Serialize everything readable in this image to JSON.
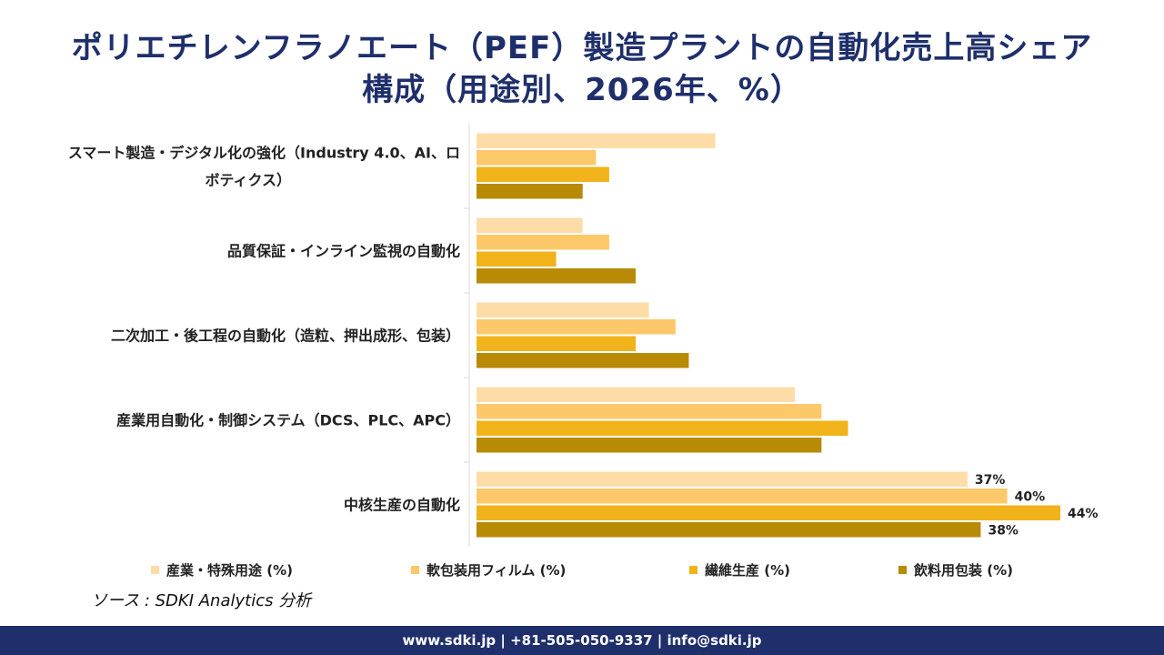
{
  "chart_data": {
    "type": "bar",
    "orientation": "horizontal",
    "title_lines": [
      "ポリエチレンフラノエート（PEF）製造プラントの自動化売上高シェア",
      "構成（用途別、2026年、%）"
    ],
    "categories": [
      "スマート製造・デジタル化の強化（Industry 4.0、AI、ロボティクス）",
      "品質保証・インライン監視の自動化",
      "二次加工・後工程の自動化（造粒、押出成形、包装）",
      "産業用自動化・制御システム（DCS、PLC、APC）",
      "中核生産の自動化"
    ],
    "category_label_lines": [
      [
        "スマート製造・デジタル化の強化（Industry 4.0、AI、ロ",
        "ボティクス）"
      ],
      [
        "品質保証・インライン監視の自動化"
      ],
      [
        "二次加工・後工程の自動化（造粒、押出成形、包装）"
      ],
      [
        "産業用自動化・制御システム（DCS、PLC、APC）"
      ],
      [
        "中核生産の自動化"
      ]
    ],
    "series": [
      {
        "name": "産業・特殊用途 (%)",
        "color": "#fddca8",
        "values": [
          18,
          8,
          13,
          24,
          37
        ]
      },
      {
        "name": "軟包装用フィルム (%)",
        "color": "#fdc86a",
        "values": [
          9,
          10,
          15,
          26,
          40
        ]
      },
      {
        "name": "繊維生産 (%)",
        "color": "#f0b31a",
        "values": [
          10,
          6,
          12,
          28,
          44
        ]
      },
      {
        "name": "飲料用包装 (%)",
        "color": "#b88a06",
        "values": [
          8,
          12,
          16,
          26,
          38
        ]
      }
    ],
    "data_labels": {
      "category": "中核生産の自動化",
      "labels": [
        "37%",
        "40%",
        "44%",
        "38%"
      ]
    },
    "xlim": [
      0,
      44
    ],
    "grid": false,
    "legend_position": "bottom"
  },
  "source_text": "ソース : SDKI Analytics 分析",
  "footer_text": "www.sdki.jp | +81-505-050-9337 | info@sdki.jp"
}
